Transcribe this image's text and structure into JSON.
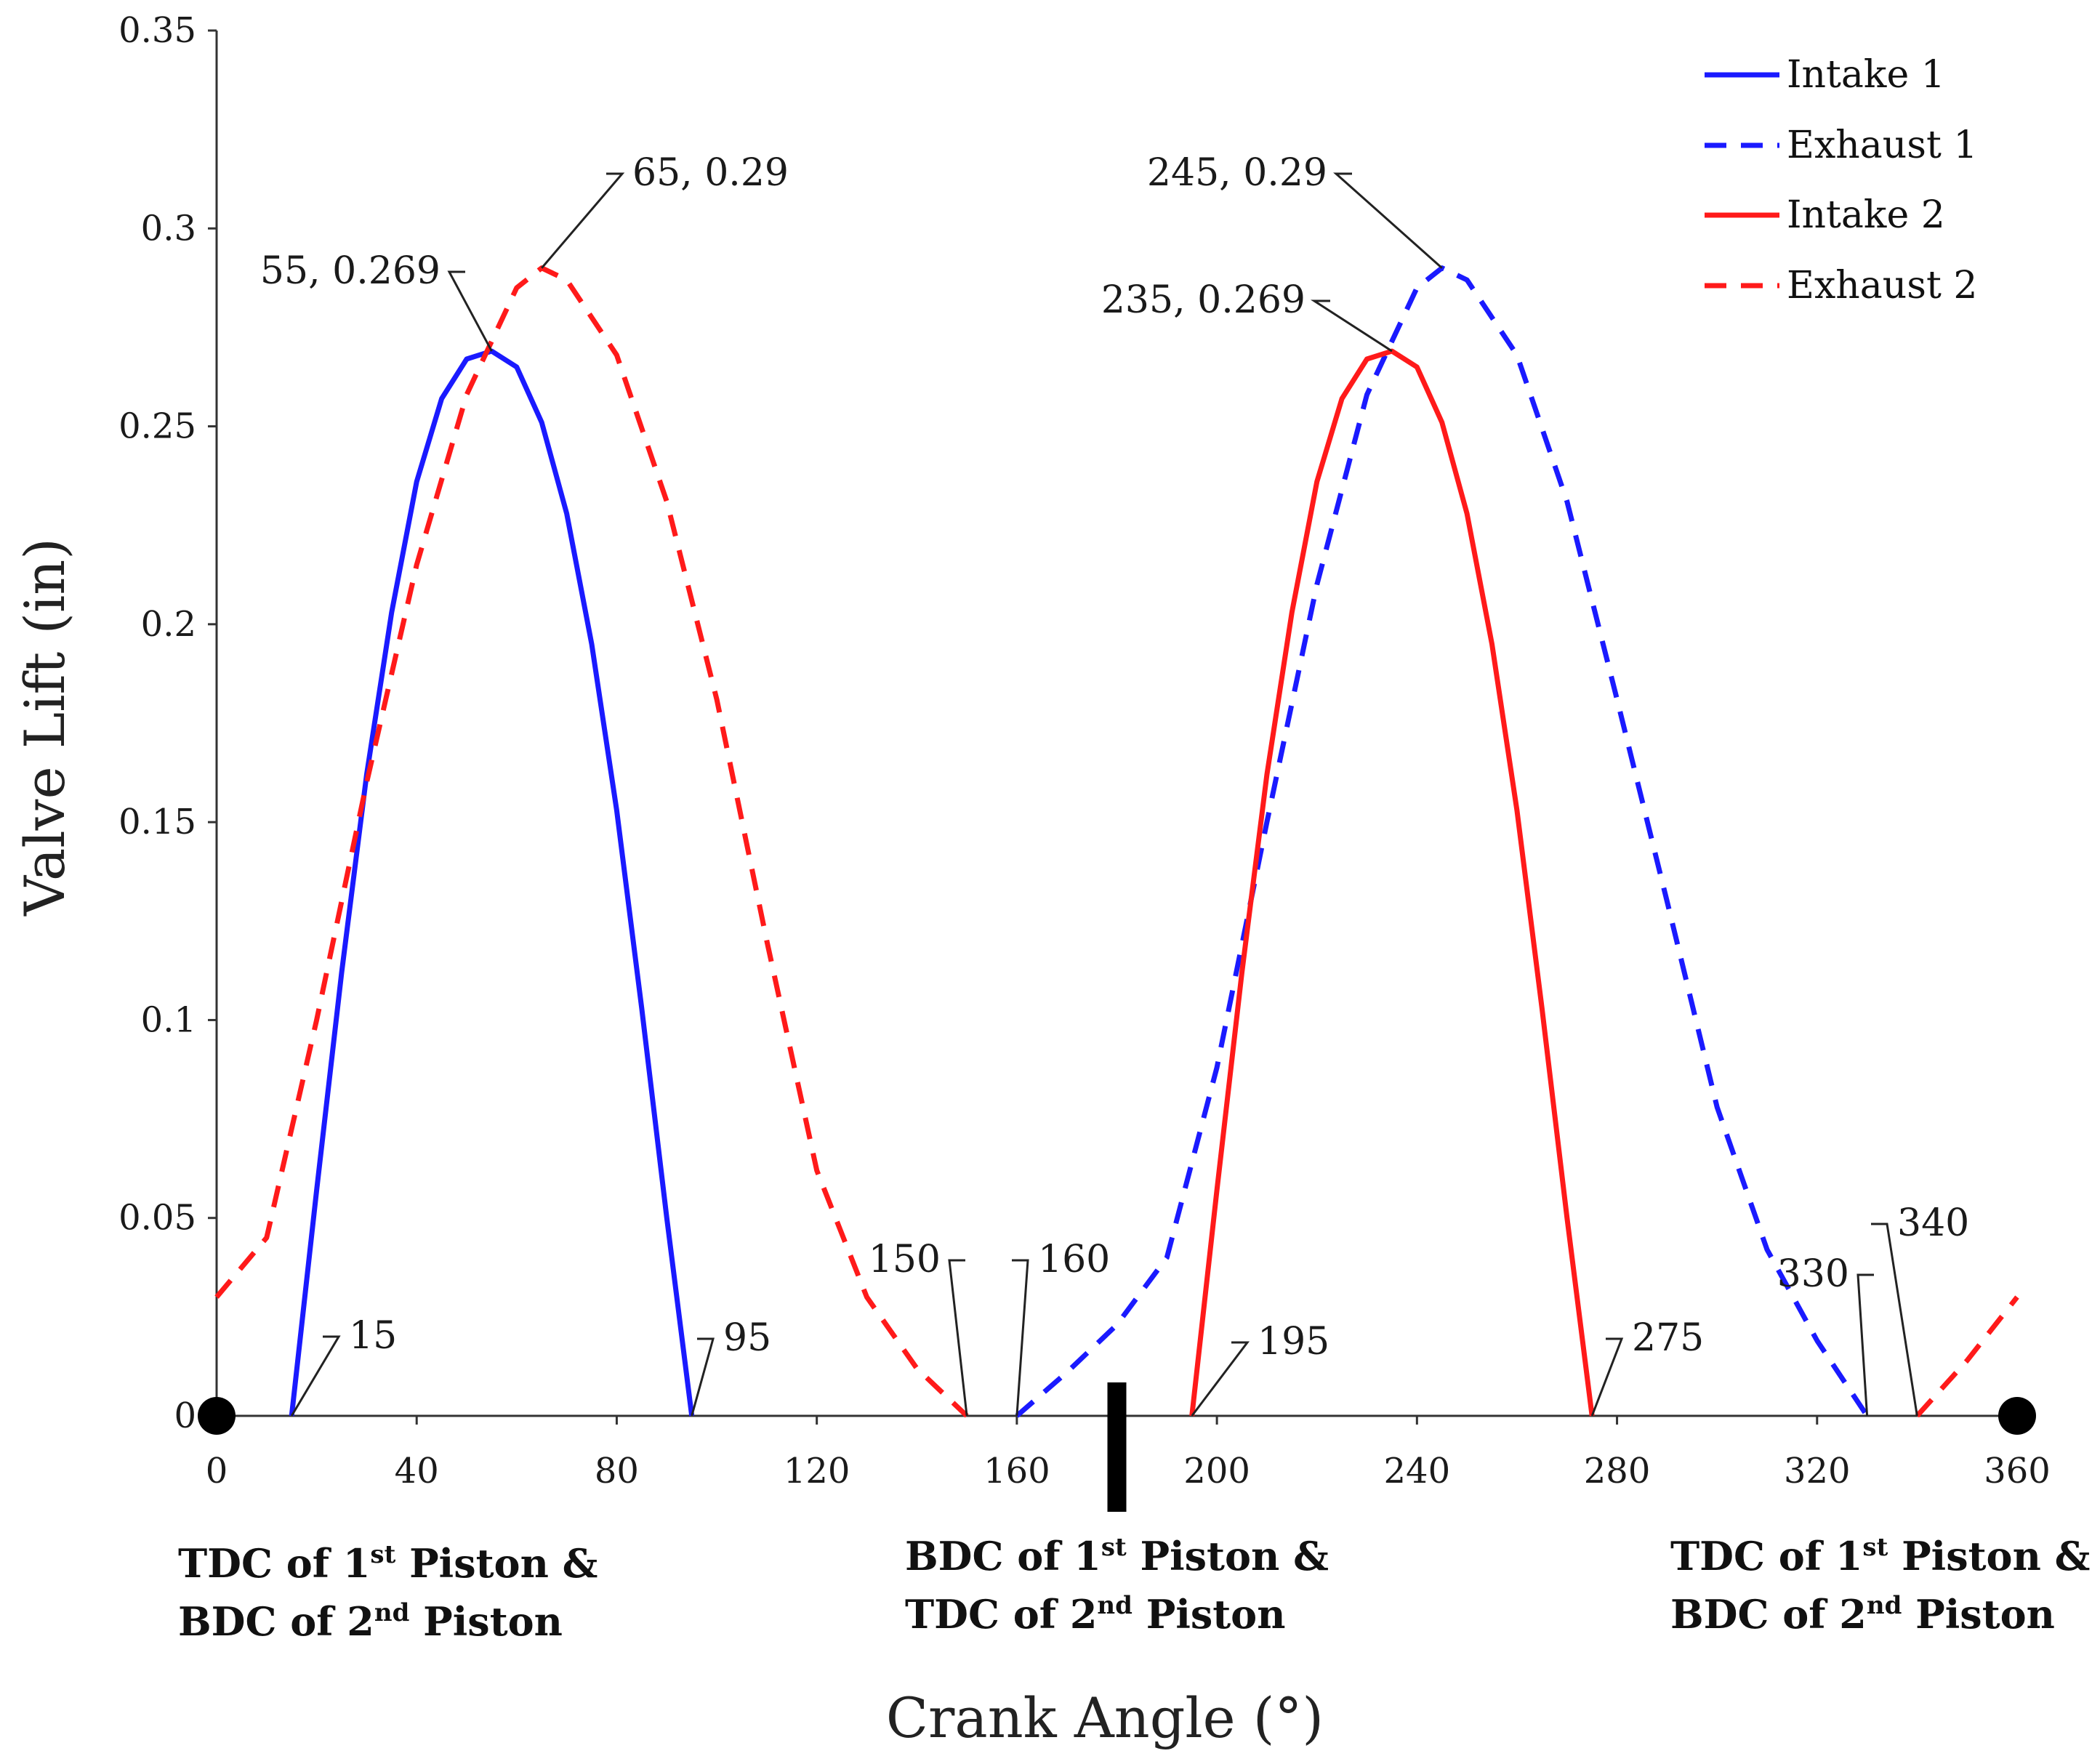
{
  "chart_data": {
    "type": "line",
    "xlabel": "Crank Angle (°)",
    "ylabel": "Valve Lift (in)",
    "xlim": [
      0,
      360
    ],
    "ylim": [
      0,
      0.35
    ],
    "xticks": [
      "0",
      "40",
      "80",
      "120",
      "160",
      "200",
      "240",
      "280",
      "320",
      "360"
    ],
    "yticks": [
      "0",
      "0.05",
      "0.1",
      "0.15",
      "0.2",
      "0.25",
      "0.3",
      "0.35"
    ],
    "legend_position": "top-right",
    "series": [
      {
        "name": "Intake 1",
        "color": "#1a1aff",
        "style": "solid",
        "open": 15,
        "close": 95,
        "peak_x": 55,
        "peak_y": 0.269,
        "x": [
          15,
          20,
          25,
          30,
          35,
          40,
          45,
          50,
          55,
          60,
          65,
          70,
          75,
          80,
          85,
          90,
          95
        ],
        "y": [
          0,
          0.057,
          0.112,
          0.162,
          0.203,
          0.236,
          0.257,
          0.267,
          0.269,
          0.265,
          0.251,
          0.228,
          0.195,
          0.153,
          0.103,
          0.05,
          0
        ]
      },
      {
        "name": "Exhaust 1",
        "color": "#1a1aff",
        "style": "dashed",
        "open": 160,
        "close": 330,
        "peak_x": 245,
        "peak_y": 0.29,
        "x": [
          160,
          170,
          180,
          190,
          200,
          210,
          220,
          230,
          240,
          245,
          250,
          260,
          270,
          280,
          290,
          300,
          310,
          320,
          330
        ],
        "y": [
          0,
          0.011,
          0.023,
          0.04,
          0.088,
          0.15,
          0.21,
          0.258,
          0.285,
          0.29,
          0.287,
          0.268,
          0.231,
          0.181,
          0.13,
          0.078,
          0.042,
          0.019,
          0
        ]
      },
      {
        "name": "Intake 2",
        "color": "#ff1a1a",
        "style": "solid",
        "open": 195,
        "close": 275,
        "peak_x": 235,
        "peak_y": 0.269,
        "x": [
          195,
          200,
          205,
          210,
          215,
          220,
          225,
          230,
          235,
          240,
          245,
          250,
          255,
          260,
          265,
          270,
          275
        ],
        "y": [
          0,
          0.057,
          0.112,
          0.162,
          0.203,
          0.236,
          0.257,
          0.267,
          0.269,
          0.265,
          0.251,
          0.228,
          0.195,
          0.153,
          0.103,
          0.05,
          0
        ]
      },
      {
        "name": "Exhaust 2",
        "color": "#ff1a1a",
        "style": "dashed",
        "open": 340,
        "close": 150,
        "peak_x": 65,
        "peak_y": 0.29,
        "x": [
          0,
          10,
          20,
          30,
          40,
          50,
          60,
          65,
          70,
          80,
          90,
          100,
          110,
          120,
          130,
          140,
          150
        ],
        "y": [
          0.03,
          0.045,
          0.1,
          0.16,
          0.215,
          0.258,
          0.285,
          0.29,
          0.287,
          0.268,
          0.231,
          0.181,
          0.12,
          0.062,
          0.03,
          0.012,
          0
        ],
        "x_wrap": [
          340,
          350,
          360
        ],
        "y_wrap": [
          0,
          0.014,
          0.03
        ]
      }
    ],
    "annotations": [
      {
        "text": "55, 0.269",
        "x": 55,
        "y": 0.269
      },
      {
        "text": "65, 0.29",
        "x": 65,
        "y": 0.29
      },
      {
        "text": "245, 0.29",
        "x": 245,
        "y": 0.29
      },
      {
        "text": "235, 0.269",
        "x": 235,
        "y": 0.269
      },
      {
        "text": "15",
        "x": 15,
        "y": 0
      },
      {
        "text": "95",
        "x": 95,
        "y": 0
      },
      {
        "text": "150",
        "x": 150,
        "y": 0
      },
      {
        "text": "160",
        "x": 160,
        "y": 0
      },
      {
        "text": "195",
        "x": 195,
        "y": 0
      },
      {
        "text": "275",
        "x": 275,
        "y": 0
      },
      {
        "text": "330",
        "x": 330,
        "y": 0
      },
      {
        "text": "340",
        "x": 340,
        "y": 0
      }
    ],
    "markers": [
      {
        "type": "dot",
        "x": 0
      },
      {
        "type": "bar",
        "x": 180
      },
      {
        "type": "dot",
        "x": 360
      }
    ],
    "position_labels": [
      {
        "x": 0,
        "line1": {
          "pre": "TDC of 1",
          "sup": "st",
          "post": " Piston &"
        },
        "line2": {
          "pre": "BDC of 2",
          "sup": "nd",
          "post": " Piston"
        }
      },
      {
        "x": 180,
        "line1": {
          "pre": "BDC of 1",
          "sup": "st",
          "post": " Piston &"
        },
        "line2": {
          "pre": "TDC of 2",
          "sup": "nd",
          "post": " Piston"
        }
      },
      {
        "x": 360,
        "line1": {
          "pre": "TDC of 1",
          "sup": "st",
          "post": " Piston &"
        },
        "line2": {
          "pre": "BDC of 2",
          "sup": "nd",
          "post": " Piston"
        }
      }
    ]
  }
}
